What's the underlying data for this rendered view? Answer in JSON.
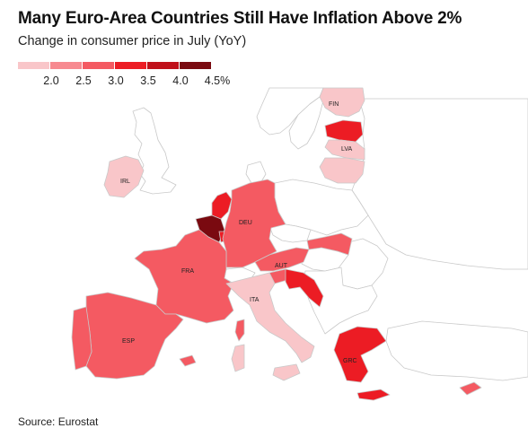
{
  "title": "Many Euro-Area Countries Still Have Inflation Above 2%",
  "subtitle": "Change in consumer price in July (YoY)",
  "legend": {
    "colors": [
      "#f9c6c9",
      "#f78a90",
      "#f45a62",
      "#ec1c24",
      "#c0101a",
      "#7a0a10"
    ],
    "ticks": [
      "2.0",
      "2.5",
      "3.0",
      "3.5",
      "4.0",
      "4.5%"
    ]
  },
  "map": {
    "colors": {
      "non_euro": "#ffffff",
      "border": "#c9c9c9",
      "cat1": "#f9c6c9",
      "cat2": "#f78a90",
      "cat3": "#f45a62",
      "cat4": "#ec1c24",
      "cat5": "#c0101a",
      "cat6": "#7a0a10"
    },
    "labels": {
      "fin": "FIN",
      "lva": "LVA",
      "irl": "IRL",
      "deu": "DEU",
      "fra": "FRA",
      "aut": "AUT",
      "ita": "ITA",
      "esp": "ESP",
      "grc": "GRC"
    }
  },
  "source": "Source: Eurostat"
}
